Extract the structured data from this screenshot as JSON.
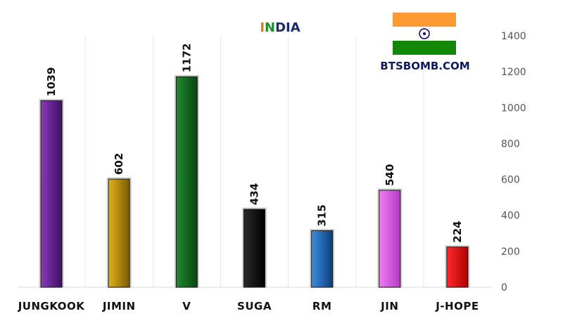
{
  "chart_data": {
    "type": "bar",
    "title_letters": [
      {
        "text": "I",
        "color": "#e07a1f"
      },
      {
        "text": "N",
        "color": "#1f8f2a"
      },
      {
        "text": "DIA",
        "color": "#1b2a6b"
      }
    ],
    "categories": [
      "JUNGKOOK",
      "JIMIN",
      "V",
      "SUGA",
      "RM",
      "JIN",
      "J-HOPE"
    ],
    "values": [
      1039,
      602,
      1172,
      434,
      315,
      540,
      224
    ],
    "value_labels": [
      "1039",
      "602",
      "1172",
      "434",
      "315",
      "540",
      "224"
    ],
    "bar_colors": [
      [
        "#8a3ab8",
        "#3d0f63"
      ],
      [
        "#e0b21a",
        "#7a5a05"
      ],
      [
        "#1e8a2a",
        "#0a4512"
      ],
      [
        "#2a2a2a",
        "#000000"
      ],
      [
        "#3a8fe0",
        "#0b3d78"
      ],
      [
        "#f07cf5",
        "#b43ac0"
      ],
      [
        "#ff2b2b",
        "#b00000"
      ]
    ],
    "ylim": [
      0,
      1400
    ],
    "yticks": [
      0,
      200,
      400,
      600,
      800,
      1000,
      1200,
      1400
    ],
    "ytick_labels": [
      "0",
      "200",
      "400",
      "600",
      "800",
      "1000",
      "1200",
      "1400"
    ],
    "yaxis_side": "right",
    "grid": "vertical-category-dividers"
  },
  "watermark": {
    "text": "BTSBOMB.COM",
    "color": "#0e1a5c",
    "flag": {
      "top": "#ff9933",
      "middle": "#ffffff",
      "bottom": "#138808",
      "chakra": "#000080"
    }
  }
}
